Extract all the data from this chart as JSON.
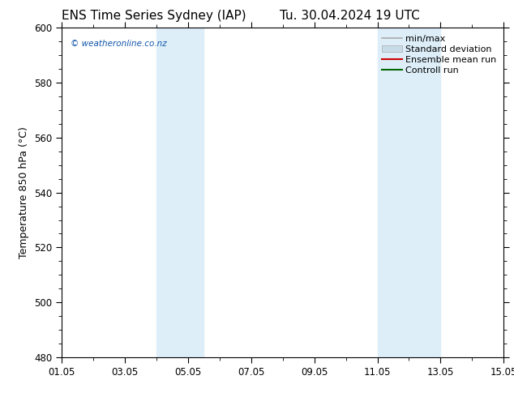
{
  "title_left": "ENS Time Series Sydney (IAP)",
  "title_right": "Tu. 30.04.2024 19 UTC",
  "ylabel": "Temperature 850 hPa (°C)",
  "xlabel_ticks": [
    "01.05",
    "03.05",
    "05.05",
    "07.05",
    "09.05",
    "11.05",
    "13.05",
    "15.05"
  ],
  "x_tick_positions": [
    0,
    2,
    4,
    6,
    8,
    10,
    12,
    14
  ],
  "xlim": [
    0,
    14
  ],
  "ylim": [
    480,
    600
  ],
  "yticks": [
    480,
    500,
    520,
    540,
    560,
    580,
    600
  ],
  "background_color": "#ffffff",
  "plot_bg_color": "#ffffff",
  "shaded_regions": [
    {
      "xstart": 3.0,
      "xend": 4.5,
      "color": "#ddeef8"
    },
    {
      "xstart": 10.0,
      "xend": 12.0,
      "color": "#ddeef8"
    }
  ],
  "watermark_text": "© weatheronline.co.nz",
  "watermark_color": "#1155aa",
  "legend_labels": [
    "min/max",
    "Standard deviation",
    "Ensemble mean run",
    "Controll run"
  ],
  "legend_colors": [
    "#aaaaaa",
    "#c8dce8",
    "#cc0000",
    "#006600"
  ],
  "title_fontsize": 11,
  "tick_label_fontsize": 8.5,
  "ylabel_fontsize": 9,
  "legend_fontsize": 8
}
